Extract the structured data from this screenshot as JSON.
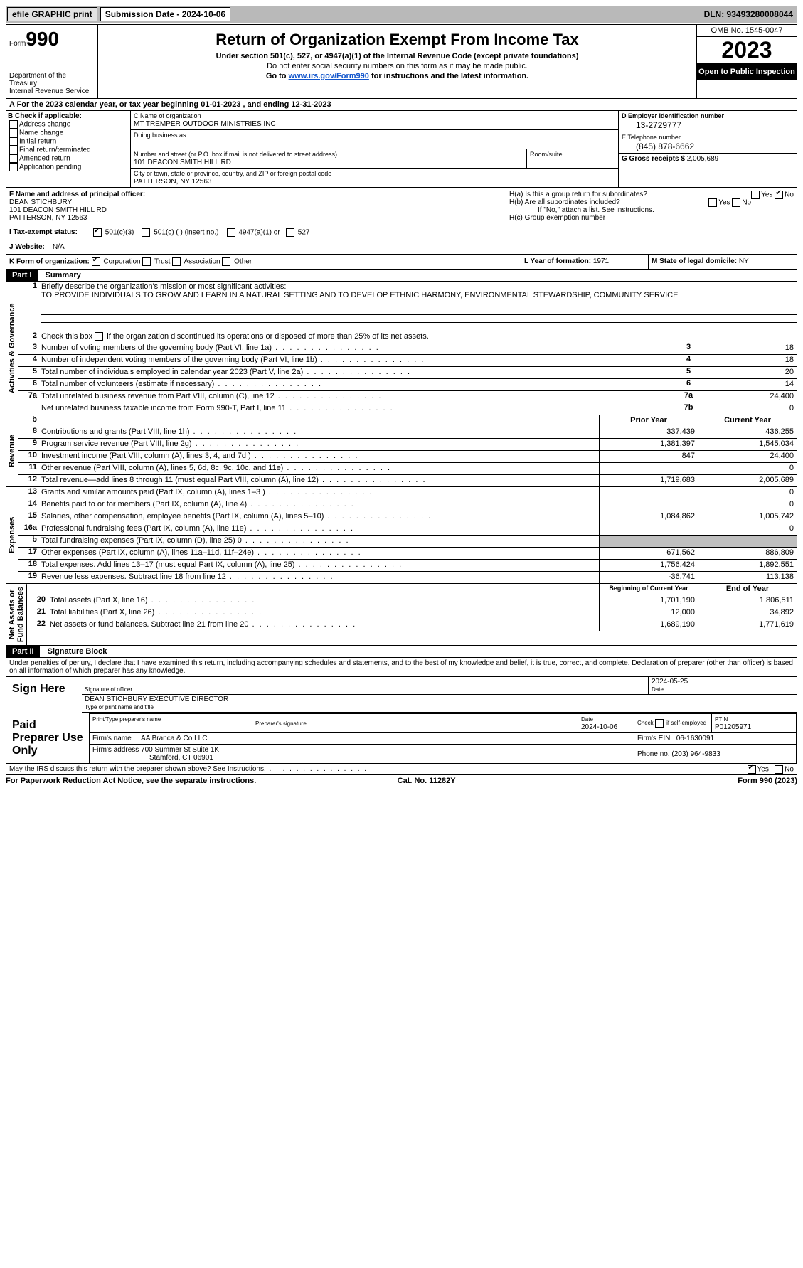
{
  "topbar": {
    "efile": "efile GRAPHIC print",
    "submission_label": "Submission Date - 2024-10-06",
    "dln": "DLN: 93493280008044"
  },
  "header": {
    "form_prefix": "Form",
    "form_number": "990",
    "dept": "Department of the Treasury\nInternal Revenue Service",
    "title": "Return of Organization Exempt From Income Tax",
    "sub1": "Under section 501(c), 527, or 4947(a)(1) of the Internal Revenue Code (except private foundations)",
    "sub2": "Do not enter social security numbers on this form as it may be made public.",
    "sub3_pre": "Go to ",
    "sub3_link": "www.irs.gov/Form990",
    "sub3_post": " for instructions and the latest information.",
    "omb": "OMB No. 1545-0047",
    "year": "2023",
    "open": "Open to Public Inspection"
  },
  "period": {
    "label": "A For the 2023 calendar year, or tax year beginning ",
    "begin": "01-01-2023",
    "mid": " , and ending ",
    "end": "12-31-2023"
  },
  "section_b": {
    "label": "B Check if applicable:",
    "opts": [
      "Address change",
      "Name change",
      "Initial return",
      "Final return/terminated",
      "Amended return",
      "Application pending"
    ]
  },
  "section_c": {
    "name_lbl": "C Name of organization",
    "name": "MT TREMPER OUTDOOR MINISTRIES INC",
    "dba_lbl": "Doing business as",
    "addr_lbl": "Number and street (or P.O. box if mail is not delivered to street address)",
    "addr": "101 DEACON SMITH HILL RD",
    "room_lbl": "Room/suite",
    "city_lbl": "City or town, state or province, country, and ZIP or foreign postal code",
    "city": "PATTERSON, NY  12563"
  },
  "section_d": {
    "lbl": "D Employer identification number",
    "val": "13-2729777"
  },
  "section_e": {
    "lbl": "E Telephone number",
    "val": "(845) 878-6662"
  },
  "section_g": {
    "lbl": "G Gross receipts $",
    "val": "2,005,689"
  },
  "section_f": {
    "lbl": "F  Name and address of principal officer:",
    "name": "DEAN STICHBURY",
    "a1": "101 DEACON SMITH HILL RD",
    "a2": "PATTERSON, NY  12563"
  },
  "section_h": {
    "a": "H(a)  Is this a group return for subordinates?",
    "b": "H(b)  Are all subordinates included?",
    "b_note": "If \"No,\" attach a list. See instructions.",
    "c": "H(c)  Group exemption number"
  },
  "section_i": {
    "lbl": "I   Tax-exempt status:",
    "o1": "501(c)(3)",
    "o2": "501(c) (  ) (insert no.)",
    "o3": "4947(a)(1) or",
    "o4": "527"
  },
  "section_j": {
    "lbl": "J   Website:",
    "val": "N/A"
  },
  "section_k": {
    "lbl": "K Form of organization:",
    "o1": "Corporation",
    "o2": "Trust",
    "o3": "Association",
    "o4": "Other"
  },
  "section_l": {
    "lbl": "L Year of formation:",
    "val": "1971"
  },
  "section_m": {
    "lbl": "M State of legal domicile:",
    "val": "NY"
  },
  "part1": {
    "num": "Part I",
    "title": "Summary"
  },
  "vlabels": {
    "g1": "Activities & Governance",
    "g2": "Revenue",
    "g3": "Expenses",
    "g4": "Net Assets or\nFund Balances"
  },
  "mission": {
    "lbl": "Briefly describe the organization's mission or most significant activities:",
    "txt": "TO PROVIDE INDIVIDUALS TO GROW AND LEARN IN A NATURAL SETTING AND TO DEVELOP ETHNIC HARMONY, ENVIRONMENTAL STEWARDSHIP, COMMUNITY SERVICE"
  },
  "line2": "Check this box      if the organization discontinued its operations or disposed of more than 25% of its net assets.",
  "gov_lines": [
    {
      "n": "3",
      "t": "Number of voting members of the governing body (Part VI, line 1a)",
      "idx": "3",
      "v": "18"
    },
    {
      "n": "4",
      "t": "Number of independent voting members of the governing body (Part VI, line 1b)",
      "idx": "4",
      "v": "18"
    },
    {
      "n": "5",
      "t": "Total number of individuals employed in calendar year 2023 (Part V, line 2a)",
      "idx": "5",
      "v": "20"
    },
    {
      "n": "6",
      "t": "Total number of volunteers (estimate if necessary)",
      "idx": "6",
      "v": "14"
    },
    {
      "n": "7a",
      "t": "Total unrelated business revenue from Part VIII, column (C), line 12",
      "idx": "7a",
      "v": "24,400"
    },
    {
      "n": "",
      "t": "Net unrelated business taxable income from Form 990-T, Part I, line 11",
      "idx": "7b",
      "v": "0"
    }
  ],
  "col_headers": {
    "b": "b",
    "py": "Prior Year",
    "cy": "Current Year",
    "bcy": "Beginning of Current Year",
    "eoy": "End of Year"
  },
  "rev_lines": [
    {
      "n": "8",
      "t": "Contributions and grants (Part VIII, line 1h)",
      "py": "337,439",
      "cy": "436,255"
    },
    {
      "n": "9",
      "t": "Program service revenue (Part VIII, line 2g)",
      "py": "1,381,397",
      "cy": "1,545,034"
    },
    {
      "n": "10",
      "t": "Investment income (Part VIII, column (A), lines 3, 4, and 7d )",
      "py": "847",
      "cy": "24,400"
    },
    {
      "n": "11",
      "t": "Other revenue (Part VIII, column (A), lines 5, 6d, 8c, 9c, 10c, and 11e)",
      "py": "",
      "cy": "0"
    },
    {
      "n": "12",
      "t": "Total revenue—add lines 8 through 11 (must equal Part VIII, column (A), line 12)",
      "py": "1,719,683",
      "cy": "2,005,689"
    }
  ],
  "exp_lines": [
    {
      "n": "13",
      "t": "Grants and similar amounts paid (Part IX, column (A), lines 1–3 )",
      "py": "",
      "cy": "0"
    },
    {
      "n": "14",
      "t": "Benefits paid to or for members (Part IX, column (A), line 4)",
      "py": "",
      "cy": "0"
    },
    {
      "n": "15",
      "t": "Salaries, other compensation, employee benefits (Part IX, column (A), lines 5–10)",
      "py": "1,084,862",
      "cy": "1,005,742"
    },
    {
      "n": "16a",
      "t": "Professional fundraising fees (Part IX, column (A), line 11e)",
      "py": "",
      "cy": "0"
    },
    {
      "n": "b",
      "t": "Total fundraising expenses (Part IX, column (D), line 25) 0",
      "py": "GRAY",
      "cy": "GRAY"
    },
    {
      "n": "17",
      "t": "Other expenses (Part IX, column (A), lines 11a–11d, 11f–24e)",
      "py": "671,562",
      "cy": "886,809"
    },
    {
      "n": "18",
      "t": "Total expenses. Add lines 13–17 (must equal Part IX, column (A), line 25)",
      "py": "1,756,424",
      "cy": "1,892,551"
    },
    {
      "n": "19",
      "t": "Revenue less expenses. Subtract line 18 from line 12",
      "py": "-36,741",
      "cy": "113,138"
    }
  ],
  "net_lines": [
    {
      "n": "20",
      "t": "Total assets (Part X, line 16)",
      "py": "1,701,190",
      "cy": "1,806,511"
    },
    {
      "n": "21",
      "t": "Total liabilities (Part X, line 26)",
      "py": "12,000",
      "cy": "34,892"
    },
    {
      "n": "22",
      "t": "Net assets or fund balances. Subtract line 21 from line 20",
      "py": "1,689,190",
      "cy": "1,771,619"
    }
  ],
  "part2": {
    "num": "Part II",
    "title": "Signature Block"
  },
  "perjury": "Under penalties of perjury, I declare that I have examined this return, including accompanying schedules and statements, and to the best of my knowledge and belief, it is true, correct, and complete. Declaration of preparer (other than officer) is based on all information of which preparer has any knowledge.",
  "sign": {
    "lbl": "Sign Here",
    "sig_lbl": "Signature of officer",
    "date_lbl": "Date",
    "date": "2024-05-25",
    "name": "DEAN STICHBURY  EXECUTIVE DIRECTOR",
    "name_lbl": "Type or print name and title"
  },
  "paid": {
    "lbl": "Paid Preparer Use Only",
    "h_print": "Print/Type preparer's name",
    "h_sig": "Preparer's signature",
    "h_date": "Date",
    "date": "2024-10-06",
    "h_self": "Check       if self-employed",
    "h_ptin": "PTIN",
    "ptin": "P01205971",
    "firm_lbl": "Firm's name",
    "firm": "AA Branca & Co LLC",
    "ein_lbl": "Firm's EIN",
    "ein": "06-1630091",
    "addr_lbl": "Firm's address",
    "addr1": "700 Summer St Suite 1K",
    "addr2": "Stamford, CT  06901",
    "phone_lbl": "Phone no.",
    "phone": "(203) 964-9833"
  },
  "discuss": "May the IRS discuss this return with the preparer shown above? See Instructions.",
  "footer": {
    "left": "For Paperwork Reduction Act Notice, see the separate instructions.",
    "mid": "Cat. No. 11282Y",
    "right": "Form 990 (2023)"
  }
}
